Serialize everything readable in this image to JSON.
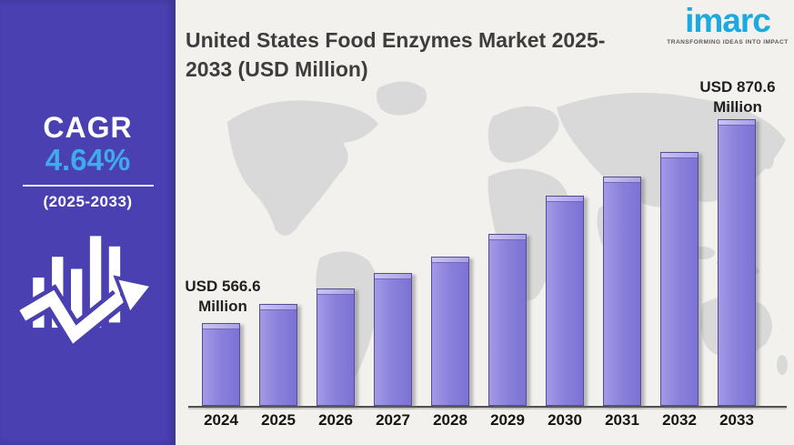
{
  "page": {
    "background_color": "#f2f1ee"
  },
  "title": "United States Food Enzymes Market 2025-2033 (USD Million)",
  "logo": {
    "brand": "imarc",
    "tagline": "TRANSFORMING IDEAS INTO IMPACT",
    "brand_color": "#1ba9e1"
  },
  "sidebar": {
    "background_color": "#4a40b2",
    "cagr_label": "CAGR",
    "cagr_value": "4.64%",
    "cagr_value_color": "#3fabed",
    "period": "(2025-2033)",
    "icon": "growth-trend-icon"
  },
  "chart_data": {
    "type": "bar",
    "title": "United States Food Enzymes Market 2025-2033 (USD Million)",
    "unit": "USD Million",
    "categories": [
      "2024",
      "2025",
      "2026",
      "2027",
      "2028",
      "2029",
      "2030",
      "2031",
      "2032",
      "2033"
    ],
    "values": [
      566.6,
      595,
      618,
      641,
      666,
      700,
      757,
      785,
      822,
      870.6
    ],
    "labeled_values": {
      "2024": 566.6,
      "2033": 870.6
    },
    "annotations": [
      {
        "category": "2024",
        "line1": "USD 566.6",
        "line2": "Million"
      },
      {
        "category": "2033",
        "line1": "USD 870.6",
        "line2": "Million"
      }
    ],
    "bar_color": "#8a80db",
    "background": "world-map-silhouette",
    "map_color": "#d9d9d9",
    "xlabel": "",
    "ylabel": "",
    "legend": false,
    "note": "intermediate 2025-2032 values estimated from bar heights"
  }
}
